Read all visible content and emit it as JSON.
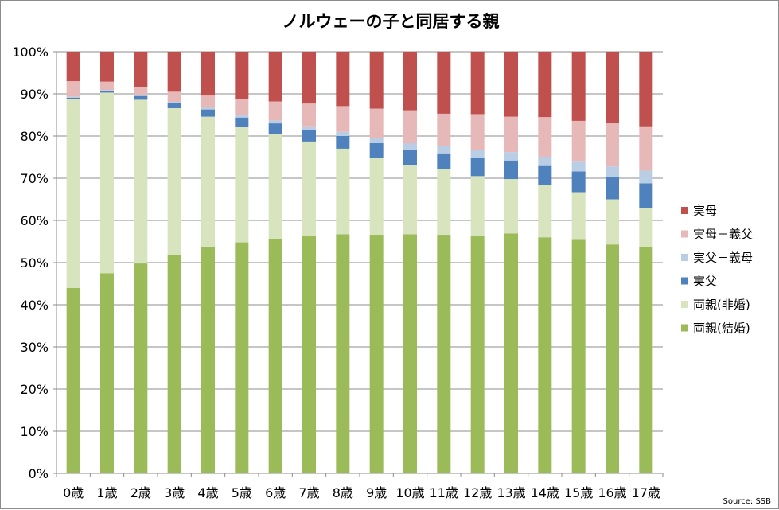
{
  "chart_data": {
    "type": "bar",
    "stacked": true,
    "title": "ノルウェーの子と同居する親",
    "source": "Source: SSB",
    "xlabel": "",
    "ylabel": "",
    "ylim": [
      0,
      100
    ],
    "y_ticks": [
      "0%",
      "10%",
      "20%",
      "30%",
      "40%",
      "50%",
      "60%",
      "70%",
      "80%",
      "90%",
      "100%"
    ],
    "grid": "horizontal",
    "legend_position": "right",
    "categories": [
      "0歳",
      "1歳",
      "2歳",
      "3歳",
      "4歳",
      "5歳",
      "6歳",
      "7歳",
      "8歳",
      "9歳",
      "10歳",
      "11歳",
      "12歳",
      "13歳",
      "14歳",
      "15歳",
      "16歳",
      "17歳"
    ],
    "series": [
      {
        "name": "両親(結婚)",
        "color": "#9bbb59",
        "values": [
          44.0,
          47.5,
          49.8,
          51.8,
          53.8,
          54.8,
          55.6,
          56.4,
          56.7,
          56.6,
          56.7,
          56.6,
          56.3,
          56.9,
          56.0,
          55.4,
          54.3,
          53.6
        ]
      },
      {
        "name": "両親(非婚)",
        "color": "#d7e4bd",
        "values": [
          44.8,
          42.8,
          38.8,
          34.8,
          30.8,
          27.4,
          24.9,
          22.3,
          20.3,
          18.3,
          16.5,
          15.5,
          14.2,
          12.9,
          12.3,
          11.3,
          10.7,
          9.4
        ]
      },
      {
        "name": "実父",
        "color": "#4f81bd",
        "values": [
          0.3,
          0.5,
          0.9,
          1.2,
          1.7,
          2.2,
          2.5,
          2.8,
          3.0,
          3.4,
          3.6,
          3.8,
          4.3,
          4.4,
          4.6,
          4.9,
          5.2,
          5.8
        ]
      },
      {
        "name": "実父＋義母",
        "color": "#b9cde5",
        "values": [
          0.2,
          0.1,
          0.2,
          0.3,
          0.4,
          0.5,
          0.7,
          0.8,
          1.0,
          1.3,
          1.5,
          1.7,
          1.9,
          2.0,
          2.2,
          2.5,
          2.6,
          3.0
        ]
      },
      {
        "name": "実母＋義父",
        "color": "#e6b9b8",
        "values": [
          3.7,
          2.0,
          2.0,
          2.4,
          2.9,
          3.8,
          4.5,
          5.4,
          6.1,
          6.9,
          7.8,
          7.7,
          8.5,
          8.4,
          9.4,
          9.5,
          10.2,
          10.5
        ]
      },
      {
        "name": "実母",
        "color": "#c0504d",
        "values": [
          7.0,
          7.1,
          8.3,
          9.5,
          10.4,
          11.3,
          11.8,
          12.3,
          12.9,
          13.5,
          13.9,
          14.7,
          14.8,
          15.4,
          15.5,
          16.4,
          17.0,
          17.7
        ]
      }
    ],
    "legend_order": [
      "実母",
      "実母＋義父",
      "実父＋義母",
      "実父",
      "両親(非婚)",
      "両親(結婚)"
    ]
  }
}
